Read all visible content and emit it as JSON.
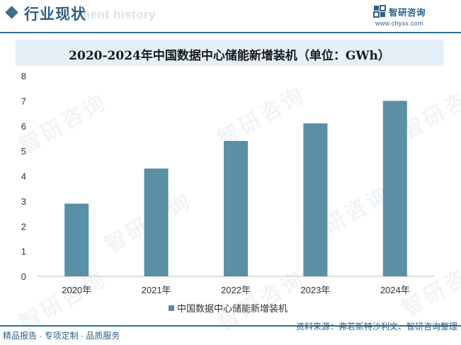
{
  "header": {
    "title": "行业现状",
    "subtitle_en": "ment history",
    "brand_name": "智研咨询",
    "brand_url": "www.chyxx.com"
  },
  "watermark_text": "智研咨询",
  "colors": {
    "bar": "#5a8fa6",
    "accent": "#2f6f95",
    "title_band": "#e4eff7"
  },
  "chart_data": {
    "type": "bar",
    "title": "2020-2024年中国数据中心储能新增装机（单位：GWh）",
    "categories": [
      "2020年",
      "2021年",
      "2022年",
      "2023年",
      "2024年"
    ],
    "series": [
      {
        "name": "中国数据中心储能新增装机",
        "values": [
          2.9,
          4.3,
          5.4,
          6.1,
          7.0
        ]
      }
    ],
    "ylim": [
      0,
      8
    ],
    "yticks": [
      "0",
      "1",
      "2",
      "3",
      "4",
      "5",
      "6",
      "7",
      "8"
    ],
    "grid": false,
    "legend_position": "bottom"
  },
  "footer": {
    "left": "精品报告 · 专项定制 · 品质服务",
    "right": "资料来源：弗若斯特沙利文、智研咨询整理"
  }
}
